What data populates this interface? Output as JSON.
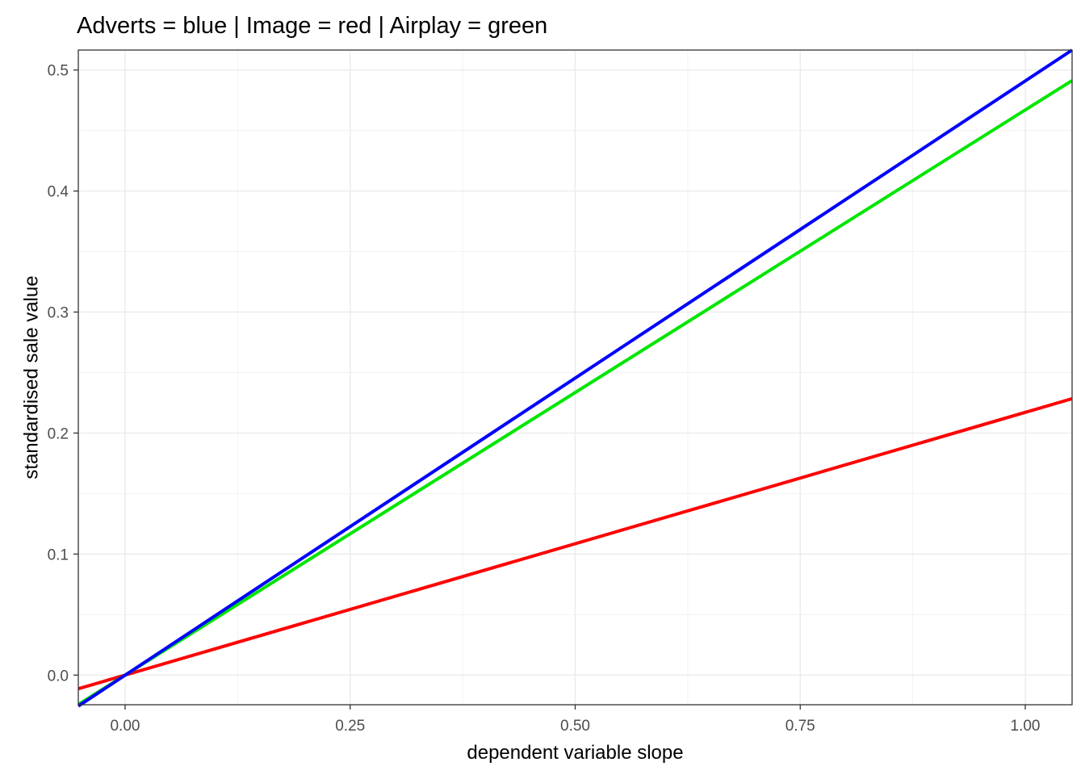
{
  "chart_data": {
    "type": "line",
    "title": "Adverts = blue | Image = red | Airplay = green",
    "xlabel": "dependent variable slope",
    "ylabel": "standardised sale value",
    "xlim": [
      -0.052,
      1.052
    ],
    "ylim": [
      -0.0245,
      0.5165
    ],
    "x_ticks": [
      0.0,
      0.25,
      0.5,
      0.75,
      1.0
    ],
    "x_tick_labels": [
      "0.00",
      "0.25",
      "0.50",
      "0.75",
      "1.00"
    ],
    "y_ticks": [
      0.0,
      0.1,
      0.2,
      0.3,
      0.4,
      0.5
    ],
    "y_tick_labels": [
      "0.0",
      "0.1",
      "0.2",
      "0.3",
      "0.4",
      "0.5"
    ],
    "grid": true,
    "legend": "none",
    "series": [
      {
        "color": "#ff0000",
        "x": [
          -0.052,
          1.052
        ],
        "y": [
          -0.0113,
          0.2284
        ]
      },
      {
        "color": "#00e600",
        "x": [
          -0.052,
          1.052
        ],
        "y": [
          -0.0243,
          0.4913
        ]
      },
      {
        "color": "#0000ff",
        "x": [
          -0.052,
          1.052
        ],
        "y": [
          -0.0256,
          0.5165
        ]
      }
    ]
  }
}
